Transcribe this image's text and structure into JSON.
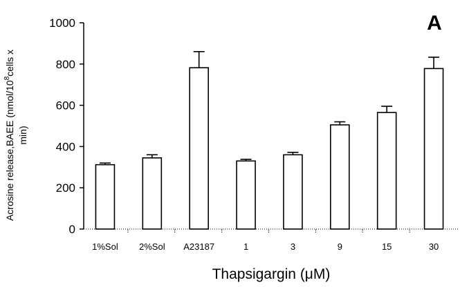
{
  "chart_data": {
    "type": "bar",
    "panel_label": "A",
    "categories": [
      "1%Sol",
      "2%Sol",
      "A23187",
      "1",
      "3",
      "9",
      "15",
      "30"
    ],
    "values": [
      312,
      345,
      782,
      330,
      360,
      505,
      565,
      778
    ],
    "errors": [
      8,
      15,
      78,
      8,
      12,
      15,
      30,
      55
    ],
    "ylim": [
      0,
      1000
    ],
    "yticks": [
      "0",
      "200",
      "400",
      "600",
      "800",
      "1000"
    ],
    "ylabel_line1": "Acrosine release,BAEE (nmol/10",
    "ylabel_sup": "8",
    "ylabel_line1_end": "cells x",
    "ylabel_line2": "min)",
    "xlabel": "Thapsigargin (μM)",
    "bar_fill": "#ffffff",
    "bar_stroke": "#000000"
  }
}
